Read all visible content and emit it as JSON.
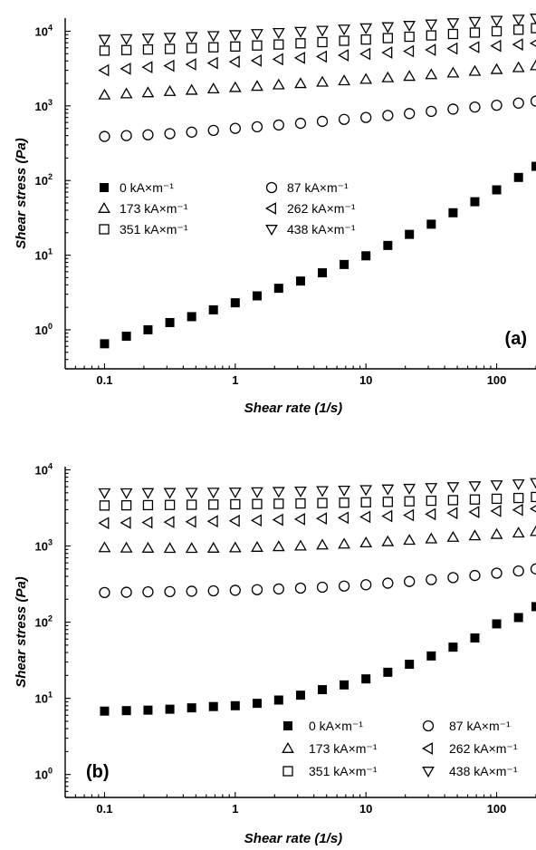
{
  "chart_data": [
    {
      "type": "scatter",
      "panel_label": "(a)",
      "xlabel": "Shear rate (1/s)",
      "ylabel": "Shear stress (Pa)",
      "x_scale": "log",
      "y_scale": "log",
      "xlim": [
        0.05,
        200
      ],
      "ylim": [
        0.3,
        15000
      ],
      "x_ticks": [
        {
          "value": 0.1,
          "label": "0.1"
        },
        {
          "value": 1,
          "label": "1"
        },
        {
          "value": 10,
          "label": "10"
        },
        {
          "value": 100,
          "label": "100"
        }
      ],
      "y_ticks": [
        {
          "value": 1,
          "base": "10",
          "exp": "0"
        },
        {
          "value": 10,
          "base": "10",
          "exp": "1"
        },
        {
          "value": 100,
          "base": "10",
          "exp": "2"
        },
        {
          "value": 1000,
          "base": "10",
          "exp": "3"
        },
        {
          "value": 10000,
          "base": "10",
          "exp": "4"
        }
      ],
      "legend_position": "middle-left",
      "x": [
        0.1,
        0.147,
        0.215,
        0.316,
        0.464,
        0.681,
        1,
        1.47,
        2.15,
        3.16,
        4.64,
        6.81,
        10,
        14.7,
        21.5,
        31.6,
        46.4,
        68.1,
        100,
        147,
        200
      ],
      "series": [
        {
          "name": "0 kA×m⁻¹",
          "marker": "square-filled",
          "values": [
            0.65,
            0.82,
            1.0,
            1.25,
            1.5,
            1.85,
            2.3,
            2.85,
            3.6,
            4.5,
            5.8,
            7.5,
            9.8,
            13.5,
            19,
            26,
            37,
            52,
            75,
            110,
            155
          ]
        },
        {
          "name": "87 kA×m⁻¹",
          "marker": "circle",
          "values": [
            390,
            400,
            410,
            425,
            445,
            470,
            500,
            525,
            555,
            585,
            620,
            660,
            700,
            745,
            790,
            845,
            905,
            965,
            1020,
            1090,
            1160
          ]
        },
        {
          "name": "173 kA×m⁻¹",
          "marker": "triangle-up",
          "values": [
            1400,
            1450,
            1500,
            1560,
            1620,
            1690,
            1760,
            1830,
            1910,
            1990,
            2080,
            2170,
            2270,
            2380,
            2490,
            2620,
            2760,
            2910,
            3070,
            3250,
            3450
          ]
        },
        {
          "name": "262 kA×m⁻¹",
          "marker": "triangle-left",
          "values": [
            3000,
            3150,
            3300,
            3450,
            3600,
            3750,
            3900,
            4050,
            4220,
            4400,
            4580,
            4770,
            4970,
            5180,
            5400,
            5630,
            5870,
            6120,
            6380,
            6650,
            6900
          ]
        },
        {
          "name": "351 kA×m⁻¹",
          "marker": "square-open",
          "values": [
            5500,
            5600,
            5700,
            5800,
            5950,
            6100,
            6250,
            6450,
            6650,
            6900,
            7150,
            7450,
            7750,
            8100,
            8450,
            8800,
            9200,
            9600,
            10000,
            10500,
            11000
          ]
        },
        {
          "name": "438 kA×m⁻¹",
          "marker": "triangle-down",
          "values": [
            7800,
            7950,
            8100,
            8300,
            8500,
            8750,
            9000,
            9300,
            9600,
            9950,
            10300,
            10700,
            11100,
            11500,
            12000,
            12500,
            13000,
            13500,
            14000,
            14500,
            15000
          ]
        }
      ]
    },
    {
      "type": "scatter",
      "panel_label": "(b)",
      "xlabel": "Shear rate (1/s)",
      "ylabel": "Shear stress (Pa)",
      "x_scale": "log",
      "y_scale": "log",
      "xlim": [
        0.05,
        200
      ],
      "ylim": [
        0.5,
        11000
      ],
      "x_ticks": [
        {
          "value": 0.1,
          "label": "0.1"
        },
        {
          "value": 1,
          "label": "1"
        },
        {
          "value": 10,
          "label": "10"
        },
        {
          "value": 100,
          "label": "100"
        }
      ],
      "y_ticks": [
        {
          "value": 1,
          "base": "10",
          "exp": "0"
        },
        {
          "value": 10,
          "base": "10",
          "exp": "1"
        },
        {
          "value": 100,
          "base": "10",
          "exp": "2"
        },
        {
          "value": 1000,
          "base": "10",
          "exp": "3"
        },
        {
          "value": 10000,
          "base": "10",
          "exp": "4"
        }
      ],
      "legend_position": "bottom-right",
      "x": [
        0.1,
        0.147,
        0.215,
        0.316,
        0.464,
        0.681,
        1,
        1.47,
        2.15,
        3.16,
        4.64,
        6.81,
        10,
        14.7,
        21.5,
        31.6,
        46.4,
        68.1,
        100,
        147,
        200
      ],
      "series": [
        {
          "name": "0 kA×m⁻¹",
          "marker": "square-filled",
          "values": [
            6.8,
            6.9,
            7.0,
            7.2,
            7.5,
            7.8,
            8.0,
            8.6,
            9.5,
            11,
            13,
            15,
            18,
            22,
            28,
            36,
            47,
            62,
            95,
            115,
            160
          ]
        },
        {
          "name": "87 kA×m⁻¹",
          "marker": "circle",
          "values": [
            245,
            247,
            250,
            252,
            255,
            258,
            262,
            267,
            273,
            280,
            288,
            298,
            310,
            325,
            342,
            362,
            385,
            410,
            440,
            470,
            500
          ]
        },
        {
          "name": "173 kA×m⁻¹",
          "marker": "triangle-up",
          "values": [
            950,
            940,
            935,
            930,
            930,
            935,
            945,
            960,
            980,
            1000,
            1030,
            1060,
            1100,
            1140,
            1190,
            1240,
            1300,
            1360,
            1420,
            1480,
            1550
          ]
        },
        {
          "name": "262 kA×m⁻¹",
          "marker": "triangle-left",
          "values": [
            2000,
            2020,
            2040,
            2060,
            2080,
            2110,
            2140,
            2170,
            2210,
            2250,
            2300,
            2350,
            2410,
            2470,
            2540,
            2620,
            2700,
            2790,
            2880,
            2980,
            3080
          ]
        },
        {
          "name": "351 kA×m⁻¹",
          "marker": "square-open",
          "values": [
            3400,
            3420,
            3440,
            3460,
            3480,
            3500,
            3530,
            3560,
            3590,
            3620,
            3660,
            3700,
            3750,
            3800,
            3860,
            3930,
            4000,
            4080,
            4170,
            4270,
            4400
          ]
        },
        {
          "name": "438 kA×m⁻¹",
          "marker": "triangle-down",
          "values": [
            5000,
            5000,
            5020,
            5040,
            5060,
            5080,
            5100,
            5150,
            5200,
            5260,
            5330,
            5410,
            5500,
            5600,
            5720,
            5850,
            6000,
            6170,
            6350,
            6550,
            6800
          ]
        }
      ]
    }
  ]
}
